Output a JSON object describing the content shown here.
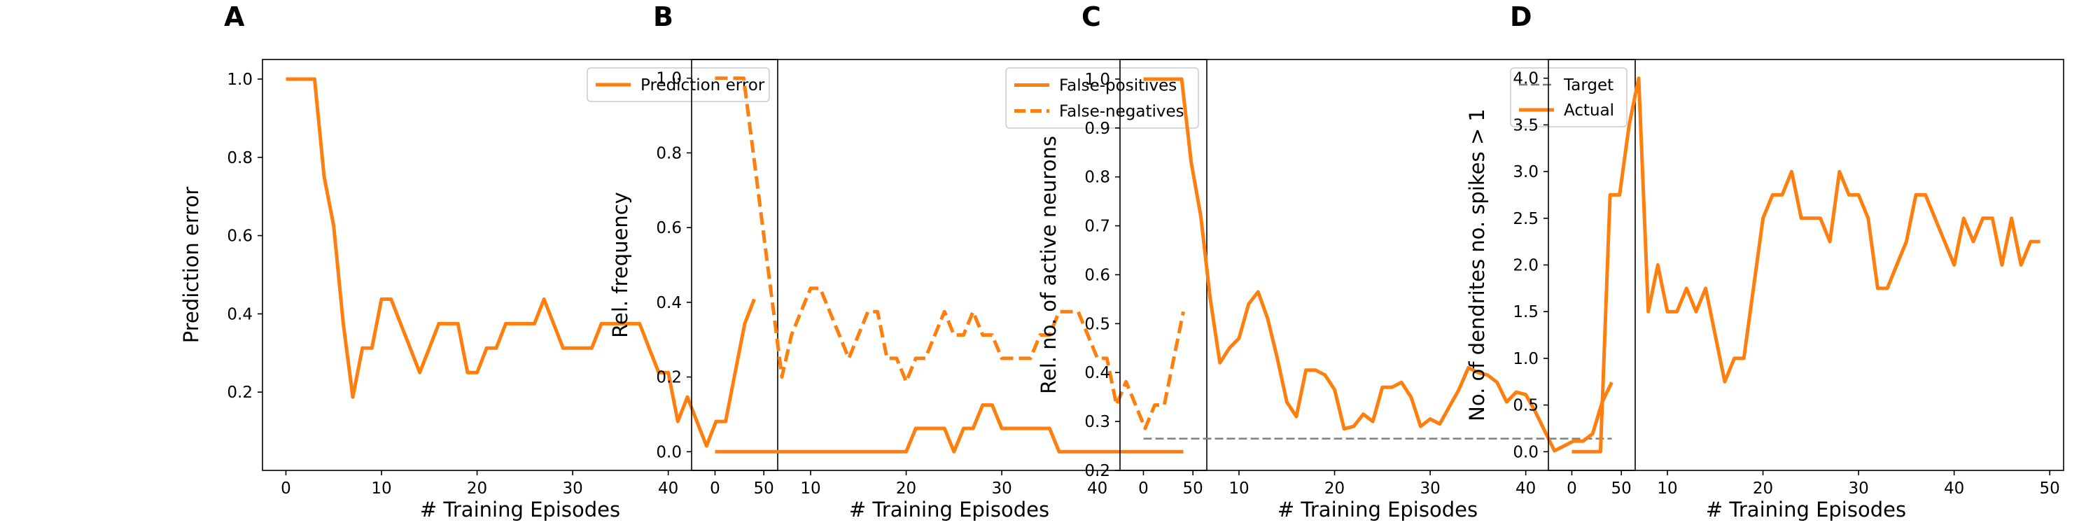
{
  "colors": {
    "accent": "#ff7f0e",
    "target": "#7f7f7f",
    "axis": "#000000",
    "legend_border": "#cccccc"
  },
  "chart_data": [
    {
      "type": "line",
      "panel_label": "A",
      "title": "",
      "xlabel": "# Training Episodes",
      "ylabel": "Prediction error",
      "xlim": [
        -2.45,
        51.45
      ],
      "ylim": [
        0.0,
        1.05
      ],
      "xticks": [
        0,
        10,
        20,
        30,
        40,
        50
      ],
      "xtick_labels": [
        "0",
        "10",
        "20",
        "30",
        "40",
        "50"
      ],
      "yticks": [
        0.2,
        0.4,
        0.6,
        0.8,
        1.0
      ],
      "ytick_labels": [
        "0.2",
        "0.4",
        "0.6",
        "0.8",
        "1.0"
      ],
      "grid": false,
      "legend": "upper right",
      "x": [
        0,
        1,
        2,
        3,
        4,
        5,
        6,
        7,
        8,
        9,
        10,
        11,
        12,
        13,
        14,
        15,
        16,
        17,
        18,
        19,
        20,
        21,
        22,
        23,
        24,
        25,
        26,
        27,
        28,
        29,
        30,
        31,
        32,
        33,
        34,
        35,
        36,
        37,
        38,
        39,
        40,
        41,
        42,
        43,
        44,
        45,
        46,
        47,
        48,
        49
      ],
      "series": [
        {
          "name": "Prediction error",
          "style": "solid",
          "values": [
            1.0,
            1.0,
            1.0,
            1.0,
            0.75,
            0.625,
            0.375,
            0.1875,
            0.3125,
            0.3125,
            0.4375,
            0.4375,
            0.375,
            0.3125,
            0.25,
            0.3125,
            0.375,
            0.375,
            0.375,
            0.25,
            0.25,
            0.3125,
            0.3125,
            0.375,
            0.375,
            0.375,
            0.375,
            0.4375,
            0.375,
            0.3125,
            0.3125,
            0.3125,
            0.3125,
            0.375,
            0.375,
            0.375,
            0.375,
            0.375,
            0.3125,
            0.25,
            0.25,
            0.125,
            0.1875,
            0.125,
            0.0625,
            0.125,
            0.125,
            0.25,
            0.375,
            0.4375
          ]
        }
      ]
    },
    {
      "type": "line",
      "panel_label": "B",
      "title": "",
      "xlabel": "# Training Episodes",
      "ylabel": "Rel. frequency",
      "xlim": [
        -2.45,
        51.45
      ],
      "ylim": [
        -0.05,
        1.05
      ],
      "xticks": [
        0,
        10,
        20,
        30,
        40,
        50
      ],
      "xtick_labels": [
        "0",
        "10",
        "20",
        "30",
        "40",
        "50"
      ],
      "yticks": [
        0.0,
        0.2,
        0.4,
        0.6,
        0.8,
        1.0
      ],
      "ytick_labels": [
        "0.0",
        "0.2",
        "0.4",
        "0.6",
        "0.8",
        "1.0"
      ],
      "grid": false,
      "legend": "upper right",
      "x": [
        0,
        1,
        2,
        3,
        4,
        5,
        6,
        7,
        8,
        9,
        10,
        11,
        12,
        13,
        14,
        15,
        16,
        17,
        18,
        19,
        20,
        21,
        22,
        23,
        24,
        25,
        26,
        27,
        28,
        29,
        30,
        31,
        32,
        33,
        34,
        35,
        36,
        37,
        38,
        39,
        40,
        41,
        42,
        43,
        44,
        45,
        46,
        47,
        48,
        49
      ],
      "series": [
        {
          "name": "False-positives",
          "style": "solid",
          "values": [
            0,
            0,
            0,
            0,
            0,
            0,
            0,
            0,
            0,
            0,
            0,
            0,
            0,
            0,
            0,
            0,
            0,
            0,
            0,
            0,
            0,
            0.0625,
            0.0625,
            0.0625,
            0.0625,
            0,
            0.0625,
            0.0625,
            0.125,
            0.125,
            0.0625,
            0.0625,
            0.0625,
            0.0625,
            0.0625,
            0.0625,
            0,
            0,
            0,
            0,
            0,
            0,
            0,
            0,
            0,
            0,
            0,
            0,
            0,
            0
          ]
        },
        {
          "name": "False-negatives",
          "style": "dashed",
          "values": [
            1.0,
            1.0,
            1.0,
            1.0,
            0.8,
            0.6,
            0.4,
            0.2,
            0.3125,
            0.375,
            0.4375,
            0.4375,
            0.375,
            0.3125,
            0.25,
            0.3125,
            0.375,
            0.375,
            0.25,
            0.25,
            0.1875,
            0.25,
            0.25,
            0.3125,
            0.375,
            0.3125,
            0.3125,
            0.375,
            0.3125,
            0.3125,
            0.25,
            0.25,
            0.25,
            0.25,
            0.3125,
            0.3125,
            0.375,
            0.375,
            0.375,
            0.3125,
            0.25,
            0.25,
            0.125,
            0.1875,
            0.125,
            0.0625,
            0.125,
            0.125,
            0.25,
            0.375
          ]
        }
      ]
    },
    {
      "type": "line",
      "panel_label": "C",
      "title": "",
      "xlabel": "# Training Episodes",
      "ylabel": "Rel. no. of active neurons",
      "xlim": [
        -2.45,
        51.45
      ],
      "ylim": [
        0.2,
        1.04
      ],
      "xticks": [
        0,
        10,
        20,
        30,
        40,
        50
      ],
      "xtick_labels": [
        "0",
        "10",
        "20",
        "30",
        "40",
        "50"
      ],
      "yticks": [
        0.2,
        0.3,
        0.4,
        0.5,
        0.6,
        0.7,
        0.8,
        0.9,
        1.0
      ],
      "ytick_labels": [
        "0.2",
        "0.3",
        "0.4",
        "0.5",
        "0.6",
        "0.7",
        "0.8",
        "0.9",
        "1.0"
      ],
      "grid": false,
      "legend": "upper right",
      "x": [
        0,
        1,
        2,
        3,
        4,
        5,
        6,
        7,
        8,
        9,
        10,
        11,
        12,
        13,
        14,
        15,
        16,
        17,
        18,
        19,
        20,
        21,
        22,
        23,
        24,
        25,
        26,
        27,
        28,
        29,
        30,
        31,
        32,
        33,
        34,
        35,
        36,
        37,
        38,
        39,
        40,
        41,
        42,
        43,
        44,
        45,
        46,
        47,
        48,
        49
      ],
      "series": [
        {
          "name": "Target",
          "style": "dashed",
          "color": "#7f7f7f",
          "values": [
            0.265,
            0.265,
            0.265,
            0.265,
            0.265,
            0.265,
            0.265,
            0.265,
            0.265,
            0.265,
            0.265,
            0.265,
            0.265,
            0.265,
            0.265,
            0.265,
            0.265,
            0.265,
            0.265,
            0.265,
            0.265,
            0.265,
            0.265,
            0.265,
            0.265,
            0.265,
            0.265,
            0.265,
            0.265,
            0.265,
            0.265,
            0.265,
            0.265,
            0.265,
            0.265,
            0.265,
            0.265,
            0.265,
            0.265,
            0.265,
            0.265,
            0.265,
            0.265,
            0.265,
            0.265,
            0.265,
            0.265,
            0.265,
            0.265,
            0.265
          ]
        },
        {
          "name": "Actual",
          "style": "solid",
          "values": [
            1.0,
            1.0,
            1.0,
            1.0,
            1.0,
            0.83,
            0.72,
            0.55,
            0.42,
            0.45,
            0.47,
            0.54,
            0.565,
            0.51,
            0.43,
            0.34,
            0.31,
            0.405,
            0.405,
            0.395,
            0.365,
            0.285,
            0.29,
            0.315,
            0.3,
            0.37,
            0.37,
            0.38,
            0.35,
            0.29,
            0.305,
            0.295,
            0.33,
            0.365,
            0.41,
            0.4,
            0.395,
            0.38,
            0.34,
            0.36,
            0.355,
            0.32,
            0.28,
            0.24,
            0.25,
            0.26,
            0.26,
            0.275,
            0.34,
            0.38
          ]
        }
      ]
    },
    {
      "type": "line",
      "panel_label": "D",
      "title": "",
      "xlabel": "# Training Episodes",
      "ylabel": "No. of dendrites no. spikes > 1",
      "xlim": [
        -2.45,
        51.45
      ],
      "ylim": [
        -0.2,
        4.2
      ],
      "xticks": [
        0,
        10,
        20,
        30,
        40,
        50
      ],
      "xtick_labels": [
        "0",
        "10",
        "20",
        "30",
        "40",
        "50"
      ],
      "yticks": [
        0.0,
        0.5,
        1.0,
        1.5,
        2.0,
        2.5,
        3.0,
        3.5,
        4.0
      ],
      "ytick_labels": [
        "0.0",
        "0.5",
        "1.0",
        "1.5",
        "2.0",
        "2.5",
        "3.0",
        "3.5",
        "4.0"
      ],
      "grid": false,
      "legend": "none",
      "x": [
        0,
        1,
        2,
        3,
        4,
        5,
        6,
        7,
        8,
        9,
        10,
        11,
        12,
        13,
        14,
        15,
        16,
        17,
        18,
        19,
        20,
        21,
        22,
        23,
        24,
        25,
        26,
        27,
        28,
        29,
        30,
        31,
        32,
        33,
        34,
        35,
        36,
        37,
        38,
        39,
        40,
        41,
        42,
        43,
        44,
        45,
        46,
        47,
        48,
        49
      ],
      "series": [
        {
          "style": "solid",
          "values": [
            0,
            0,
            0,
            0,
            2.75,
            2.75,
            3.5,
            4.0,
            1.5,
            2.0,
            1.5,
            1.5,
            1.75,
            1.5,
            1.75,
            1.25,
            0.75,
            1.0,
            1.0,
            1.75,
            2.5,
            2.75,
            2.75,
            3.0,
            2.5,
            2.5,
            2.5,
            2.25,
            3.0,
            2.75,
            2.75,
            2.5,
            1.75,
            1.75,
            2.0,
            2.25,
            2.75,
            2.75,
            2.5,
            2.25,
            2.0,
            2.5,
            2.25,
            2.5,
            2.5,
            2.0,
            2.5,
            2.0,
            2.25,
            2.25
          ]
        }
      ]
    }
  ]
}
